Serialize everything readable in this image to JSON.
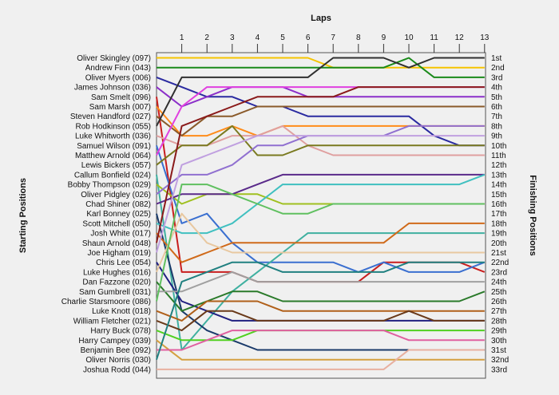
{
  "chart_data": {
    "type": "line",
    "title": "Laps",
    "xlabel": "Laps",
    "ylabel_left": "Starting Positions",
    "ylabel_right": "Finishing Positions",
    "laps": [
      "1",
      "2",
      "3",
      "4",
      "5",
      "6",
      "7",
      "8",
      "9",
      "10",
      "11",
      "12",
      "13"
    ],
    "finish_labels": [
      "1st",
      "2nd",
      "3rd",
      "4th",
      "5th",
      "6th",
      "7th",
      "8th",
      "9th",
      "10th",
      "11th",
      "12th",
      "13th",
      "14th",
      "15th",
      "16th",
      "17th",
      "18th",
      "19th",
      "20th",
      "21st",
      "22nd",
      "23rd",
      "24th",
      "25th",
      "26th",
      "27th",
      "28th",
      "29th",
      "30th",
      "31st",
      "32nd",
      "33rd"
    ],
    "drivers": [
      "Oliver Skingley (097)",
      "Andrew Finn (043)",
      "Oliver Myers (006)",
      "James Johnson (036)",
      "Sam Smelt (096)",
      "Sam Marsh (007)",
      "Steven Handford (027)",
      "Rob Hodkinson (055)",
      "Luke Whitworth (036)",
      "Samuel Wilson (091)",
      "Matthew Arnold (064)",
      "Lewis Bickers (057)",
      "Callum Bonfield (024)",
      "Bobby Thompson (029)",
      "Oliver Pidgley (026)",
      "Chad Shiner (082)",
      "Karl Bonney (025)",
      "Scott Mitchell (050)",
      "Josh White (017)",
      "Shaun Arnold (048)",
      "Joe Higham (019)",
      "Chris Lee (054)",
      "Luke Hughes (016)",
      "Dan Fazzone (020)",
      "Sam Gumbrell (031)",
      "Charlie Starsmoore (086)",
      "Luke Knott (018)",
      "William Fletcher (021)",
      "Harry Buck (078)",
      "Harry Campey (039)",
      "Benjamin Bee (092)",
      "Oliver Norris (030)",
      "Joshua Rodd (044)"
    ],
    "series": [
      {
        "color": "#f5c400",
        "values": [
          1,
          1,
          1,
          1,
          1,
          1,
          1,
          2,
          2,
          2,
          2,
          2,
          2,
          2
        ]
      },
      {
        "color": "#1a8a1a",
        "values": [
          2,
          2,
          2,
          2,
          2,
          2,
          2,
          2,
          2,
          2,
          1,
          3,
          3,
          3
        ]
      },
      {
        "color": "#2a2aa0",
        "values": [
          3,
          4,
          5,
          5,
          6,
          6,
          7,
          7,
          7,
          7,
          7,
          9,
          10,
          10
        ]
      },
      {
        "color": "#8b2fc9",
        "values": [
          4,
          6,
          5,
          4,
          4,
          4,
          5,
          5,
          5,
          5,
          5,
          5,
          5,
          5
        ]
      },
      {
        "color": "#c81e1e",
        "values": [
          5,
          23,
          23,
          23,
          24,
          24,
          24,
          24,
          24,
          22,
          22,
          22,
          22,
          23
        ]
      },
      {
        "color": "#ff8c1a",
        "values": [
          6,
          9,
          9,
          8,
          9,
          8,
          8,
          8,
          8,
          8,
          8,
          8,
          8,
          8
        ]
      },
      {
        "color": "#8a5a2a",
        "values": [
          7,
          9,
          7,
          7,
          6,
          6,
          6,
          6,
          6,
          6,
          6,
          6,
          6,
          6
        ]
      },
      {
        "color": "#303030",
        "values": [
          8,
          3,
          3,
          3,
          3,
          3,
          3,
          1,
          1,
          1,
          2,
          1,
          1,
          1
        ]
      },
      {
        "color": "#e0a0a0",
        "values": [
          9,
          10,
          10,
          9,
          9,
          8,
          10,
          11,
          11,
          11,
          11,
          11,
          11,
          11
        ]
      },
      {
        "color": "#3a6fd0",
        "values": [
          10,
          18,
          17,
          20,
          22,
          22,
          22,
          22,
          23,
          22,
          23,
          23,
          23,
          22
        ]
      },
      {
        "color": "#e040e0",
        "values": [
          11,
          6,
          4,
          4,
          4,
          4,
          4,
          4,
          4,
          4,
          4,
          4,
          4,
          4
        ]
      },
      {
        "color": "#7a7a20",
        "values": [
          12,
          10,
          10,
          8,
          11,
          11,
          10,
          10,
          10,
          10,
          10,
          10,
          10,
          10
        ]
      },
      {
        "color": "#3fb0a0",
        "values": [
          13,
          31,
          28,
          25,
          23,
          21,
          19,
          19,
          19,
          19,
          19,
          19,
          19,
          19
        ]
      },
      {
        "color": "#a0c020",
        "values": [
          14,
          16,
          15,
          15,
          15,
          16,
          16,
          16,
          16,
          16,
          16,
          16,
          16,
          16
        ]
      },
      {
        "color": "#9070d0",
        "values": [
          15,
          13,
          13,
          12,
          10,
          10,
          9,
          9,
          9,
          9,
          8,
          8,
          8,
          8
        ]
      },
      {
        "color": "#5a2a8a",
        "values": [
          16,
          15,
          15,
          15,
          14,
          13,
          13,
          13,
          13,
          13,
          13,
          13,
          13,
          13
        ]
      },
      {
        "color": "#1a3a6a",
        "values": [
          17,
          27,
          29,
          30,
          31,
          31,
          31,
          31,
          31,
          31,
          31,
          31,
          31,
          31
        ]
      },
      {
        "color": "#40c0c0",
        "values": [
          18,
          19,
          19,
          18,
          16,
          14,
          14,
          14,
          14,
          14,
          14,
          14,
          14,
          13
        ]
      },
      {
        "color": "#d06a1a",
        "values": [
          19,
          22,
          21,
          20,
          20,
          20,
          20,
          20,
          20,
          20,
          18,
          18,
          18,
          18
        ]
      },
      {
        "color": "#8a1a1a",
        "values": [
          20,
          8,
          7,
          6,
          5,
          5,
          5,
          5,
          4,
          4,
          4,
          4,
          4,
          4
        ]
      },
      {
        "color": "#c0a0e0",
        "values": [
          21,
          12,
          11,
          10,
          9,
          9,
          9,
          9,
          9,
          9,
          9,
          9,
          9,
          9
        ]
      },
      {
        "color": "#202080",
        "values": [
          22,
          26,
          27,
          28,
          28,
          28,
          28,
          28,
          28,
          28,
          28,
          28,
          28,
          28
        ]
      },
      {
        "color": "#e8c8a0",
        "values": [
          23,
          17,
          20,
          21,
          21,
          21,
          21,
          21,
          21,
          21,
          21,
          21,
          21,
          21
        ]
      },
      {
        "color": "#2a7a2a",
        "values": [
          24,
          27,
          26,
          25,
          25,
          26,
          26,
          26,
          26,
          26,
          26,
          26,
          26,
          25
        ]
      },
      {
        "color": "#a0a0a0",
        "values": [
          25,
          25,
          24,
          23,
          24,
          24,
          24,
          24,
          24,
          24,
          24,
          24,
          24,
          24
        ]
      },
      {
        "color": "#60c060",
        "values": [
          26,
          14,
          14,
          15,
          16,
          17,
          17,
          16,
          16,
          16,
          16,
          16,
          16,
          16
        ]
      },
      {
        "color": "#b0601a",
        "values": [
          27,
          28,
          26,
          26,
          26,
          27,
          27,
          27,
          27,
          27,
          27,
          27,
          27,
          27
        ]
      },
      {
        "color": "#6a3a1a",
        "values": [
          28,
          29,
          27,
          27,
          28,
          28,
          28,
          28,
          28,
          28,
          27,
          28,
          28,
          28
        ]
      },
      {
        "color": "#50d020",
        "values": [
          29,
          30,
          30,
          30,
          29,
          29,
          29,
          29,
          29,
          29,
          29,
          29,
          29,
          29
        ]
      },
      {
        "color": "#d4a040",
        "values": [
          30,
          32,
          32,
          32,
          32,
          32,
          32,
          32,
          32,
          32,
          32,
          32,
          32,
          32
        ]
      },
      {
        "color": "#e060a0",
        "values": [
          31,
          31,
          30,
          29,
          29,
          29,
          29,
          29,
          29,
          29,
          30,
          30,
          30,
          30
        ]
      },
      {
        "color": "#208080",
        "values": [
          32,
          24,
          23,
          22,
          22,
          23,
          23,
          23,
          23,
          23,
          22,
          22,
          22,
          22
        ]
      },
      {
        "color": "#e8b0a0",
        "values": [
          33,
          33,
          33,
          33,
          33,
          33,
          33,
          33,
          33,
          33,
          31,
          31,
          31,
          31
        ]
      }
    ]
  }
}
